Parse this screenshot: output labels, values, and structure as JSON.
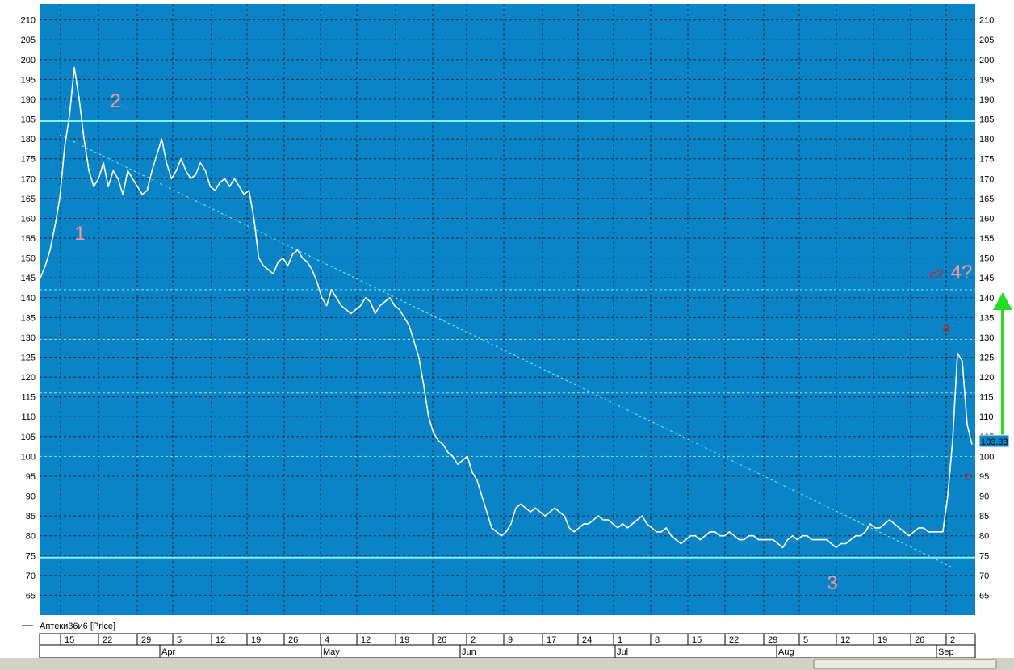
{
  "colors": {
    "frame_bg": "#ffffff",
    "plot_bg": "#0a84c6",
    "grid": "#0b2d48",
    "price": "#ffffff",
    "levels": "#7ff2ff",
    "wave_label": "#f59a9a",
    "sub_label": "#d81a1a",
    "arrow": "#22dd22",
    "price_tag_bg": "#0a84c6",
    "price_tag_border": "#ffffff",
    "scrollbar": "#d4d0c8"
  },
  "legend": {
    "label": "Аптеки36и6 [Price]"
  },
  "price_tag": "103.33",
  "chart_data": {
    "type": "line",
    "series": [
      {
        "name": "Аптеки36и6 [Price]",
        "values_index_domain": [
          0,
          192
        ],
        "points": [
          [
            0,
            145
          ],
          [
            1,
            148
          ],
          [
            2,
            152
          ],
          [
            3,
            158
          ],
          [
            4,
            165
          ],
          [
            5,
            178
          ],
          [
            6,
            186
          ],
          [
            7,
            198
          ],
          [
            8,
            190
          ],
          [
            9,
            180
          ],
          [
            10,
            172
          ],
          [
            11,
            168
          ],
          [
            12,
            170
          ],
          [
            13,
            174
          ],
          [
            14,
            168
          ],
          [
            15,
            172
          ],
          [
            16,
            170
          ],
          [
            17,
            166
          ],
          [
            18,
            172
          ],
          [
            19,
            170
          ],
          [
            20,
            168
          ],
          [
            21,
            166
          ],
          [
            22,
            167
          ],
          [
            23,
            172
          ],
          [
            24,
            176
          ],
          [
            25,
            180
          ],
          [
            26,
            174
          ],
          [
            27,
            170
          ],
          [
            28,
            172
          ],
          [
            29,
            175
          ],
          [
            30,
            172
          ],
          [
            31,
            170
          ],
          [
            32,
            171
          ],
          [
            33,
            174
          ],
          [
            34,
            172
          ],
          [
            35,
            168
          ],
          [
            36,
            167
          ],
          [
            37,
            169
          ],
          [
            38,
            170
          ],
          [
            39,
            168
          ],
          [
            40,
            170
          ],
          [
            41,
            168
          ],
          [
            42,
            166
          ],
          [
            43,
            167
          ],
          [
            44,
            160
          ],
          [
            45,
            150
          ],
          [
            46,
            148
          ],
          [
            47,
            147
          ],
          [
            48,
            146
          ],
          [
            49,
            149
          ],
          [
            50,
            150
          ],
          [
            51,
            148
          ],
          [
            52,
            151
          ],
          [
            53,
            152
          ],
          [
            54,
            150
          ],
          [
            55,
            149
          ],
          [
            56,
            147
          ],
          [
            57,
            144
          ],
          [
            58,
            140
          ],
          [
            59,
            138
          ],
          [
            60,
            142
          ],
          [
            61,
            140
          ],
          [
            62,
            138
          ],
          [
            63,
            137
          ],
          [
            64,
            136
          ],
          [
            65,
            137
          ],
          [
            66,
            138
          ],
          [
            67,
            140
          ],
          [
            68,
            139
          ],
          [
            69,
            136
          ],
          [
            70,
            138
          ],
          [
            71,
            139
          ],
          [
            72,
            140
          ],
          [
            73,
            138
          ],
          [
            74,
            137
          ],
          [
            75,
            135
          ],
          [
            76,
            133
          ],
          [
            77,
            129
          ],
          [
            78,
            125
          ],
          [
            79,
            118
          ],
          [
            80,
            110
          ],
          [
            81,
            106
          ],
          [
            82,
            104
          ],
          [
            83,
            103
          ],
          [
            84,
            101
          ],
          [
            85,
            100
          ],
          [
            86,
            98
          ],
          [
            87,
            99
          ],
          [
            88,
            100
          ],
          [
            89,
            96
          ],
          [
            90,
            94
          ],
          [
            91,
            90
          ],
          [
            92,
            86
          ],
          [
            93,
            82
          ],
          [
            94,
            81
          ],
          [
            95,
            80
          ],
          [
            96,
            81
          ],
          [
            97,
            83
          ],
          [
            98,
            87
          ],
          [
            99,
            88
          ],
          [
            100,
            87
          ],
          [
            101,
            86
          ],
          [
            102,
            87
          ],
          [
            103,
            86
          ],
          [
            104,
            85
          ],
          [
            105,
            86
          ],
          [
            106,
            87
          ],
          [
            107,
            86
          ],
          [
            108,
            85
          ],
          [
            109,
            82
          ],
          [
            110,
            81
          ],
          [
            111,
            82
          ],
          [
            112,
            83
          ],
          [
            113,
            83
          ],
          [
            114,
            84
          ],
          [
            115,
            85
          ],
          [
            116,
            84
          ],
          [
            117,
            84
          ],
          [
            118,
            83
          ],
          [
            119,
            82
          ],
          [
            120,
            83
          ],
          [
            121,
            82
          ],
          [
            122,
            83
          ],
          [
            123,
            84
          ],
          [
            124,
            85
          ],
          [
            125,
            83
          ],
          [
            126,
            82
          ],
          [
            127,
            81
          ],
          [
            128,
            81
          ],
          [
            129,
            82
          ],
          [
            130,
            80
          ],
          [
            131,
            79
          ],
          [
            132,
            78
          ],
          [
            133,
            79
          ],
          [
            134,
            80
          ],
          [
            135,
            80
          ],
          [
            136,
            79
          ],
          [
            137,
            80
          ],
          [
            138,
            81
          ],
          [
            139,
            81
          ],
          [
            140,
            80
          ],
          [
            141,
            80
          ],
          [
            142,
            81
          ],
          [
            143,
            80
          ],
          [
            144,
            79
          ],
          [
            145,
            79
          ],
          [
            146,
            80
          ],
          [
            147,
            80
          ],
          [
            148,
            79
          ],
          [
            149,
            79
          ],
          [
            150,
            79
          ],
          [
            151,
            79
          ],
          [
            152,
            78
          ],
          [
            153,
            77
          ],
          [
            154,
            79
          ],
          [
            155,
            80
          ],
          [
            156,
            79
          ],
          [
            157,
            80
          ],
          [
            158,
            80
          ],
          [
            159,
            79
          ],
          [
            160,
            79
          ],
          [
            161,
            79
          ],
          [
            162,
            79
          ],
          [
            163,
            78
          ],
          [
            164,
            77
          ],
          [
            165,
            78
          ],
          [
            166,
            78
          ],
          [
            167,
            79
          ],
          [
            168,
            80
          ],
          [
            169,
            80
          ],
          [
            170,
            81
          ],
          [
            171,
            83
          ],
          [
            172,
            82
          ],
          [
            173,
            82
          ],
          [
            174,
            83
          ],
          [
            175,
            84
          ],
          [
            176,
            83
          ],
          [
            177,
            82
          ],
          [
            178,
            81
          ],
          [
            179,
            80
          ],
          [
            180,
            81
          ],
          [
            181,
            82
          ],
          [
            182,
            82
          ],
          [
            183,
            81
          ],
          [
            184,
            81
          ],
          [
            185,
            81
          ],
          [
            186,
            81
          ],
          [
            187,
            90
          ],
          [
            188,
            104
          ],
          [
            189,
            126
          ],
          [
            190,
            124
          ],
          [
            191,
            108
          ],
          [
            192,
            103
          ]
        ]
      }
    ],
    "ylim": [
      60,
      214
    ],
    "y_ticks": [
      65,
      70,
      75,
      80,
      85,
      90,
      95,
      100,
      105,
      110,
      115,
      120,
      125,
      130,
      135,
      140,
      145,
      150,
      155,
      160,
      165,
      170,
      175,
      180,
      185,
      190,
      195,
      200,
      205,
      210
    ],
    "x_day_ticks": [
      "15",
      "22",
      "29",
      "5",
      "12",
      "19",
      "26",
      "4",
      "12",
      "19",
      "26",
      "2",
      "9",
      "17",
      "24",
      "1",
      "8",
      "15",
      "22",
      "29",
      "5",
      "12",
      "19",
      "26",
      "2"
    ],
    "x_month_ticks": [
      "Apr",
      "May",
      "Jun",
      "Jul",
      "Aug",
      "Sep"
    ],
    "horizontal_levels_solid": [
      184.5,
      74.5
    ],
    "horizontal_levels_dashed": [
      142,
      129.5,
      116,
      100
    ],
    "trendline": {
      "from": [
        4,
        181
      ],
      "to": [
        188,
        72
      ]
    },
    "wave_labels": [
      {
        "text": "1",
        "style": "wave"
      },
      {
        "text": "2",
        "style": "wave"
      },
      {
        "text": "3",
        "style": "wave"
      },
      {
        "text": "c?",
        "style": "sub"
      },
      {
        "text": "4?",
        "style": "wave"
      },
      {
        "text": "a",
        "style": "sub"
      },
      {
        "text": "b",
        "style": "sub"
      }
    ],
    "grid": true,
    "legend_position": "bottom-left"
  }
}
